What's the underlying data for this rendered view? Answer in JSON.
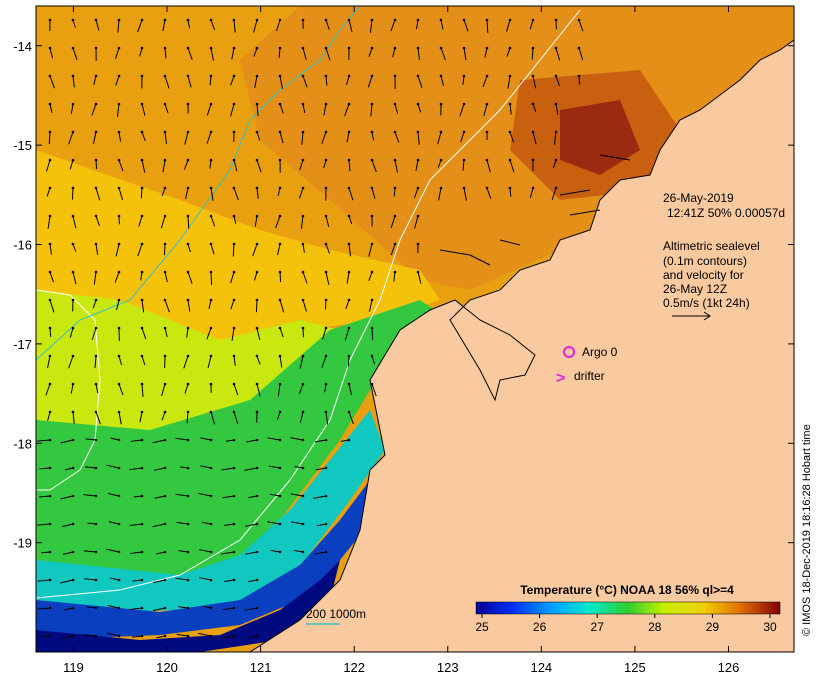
{
  "chart_data": {
    "type": "heatmap",
    "title": "Temperature (°C) NOAA 18 56% ql>=4",
    "x_axis": {
      "ticks": [
        "119",
        "120",
        "121",
        "122",
        "123",
        "124",
        "125",
        "126"
      ],
      "range": [
        118.6,
        126.7
      ]
    },
    "y_axis": {
      "ticks": [
        "-14",
        "-15",
        "-16",
        "-17",
        "-18",
        "-19"
      ],
      "range": [
        -20.1,
        -13.6
      ]
    },
    "colorbar": {
      "range": [
        25,
        30
      ],
      "ticks": [
        "25",
        "26",
        "27",
        "28",
        "29",
        "30"
      ]
    },
    "colors": {
      "land": "#f9c9a0",
      "coast": "#000000",
      "sealevel_contour": "#ffffff",
      "bathy_contour": "#33c2c2",
      "argo": "#e020e0",
      "drifter": "#e020e0"
    }
  },
  "annotations": {
    "date": "26-May-2019",
    "time_info": "12:41Z  50% 0.00057d",
    "altimetry": [
      "Altimetric sealevel",
      "(0.1m contours)",
      "and velocity for",
      "26-May 12Z",
      "0.5m/s (1kt 24h)"
    ],
    "argo_label": "Argo 0",
    "drifter_label": "drifter",
    "drifter_symbol": ">",
    "bathymetry_label": "200  1000m",
    "credit": "© IMOS 18-Dec-2019 18:16:28 Hobart time"
  }
}
